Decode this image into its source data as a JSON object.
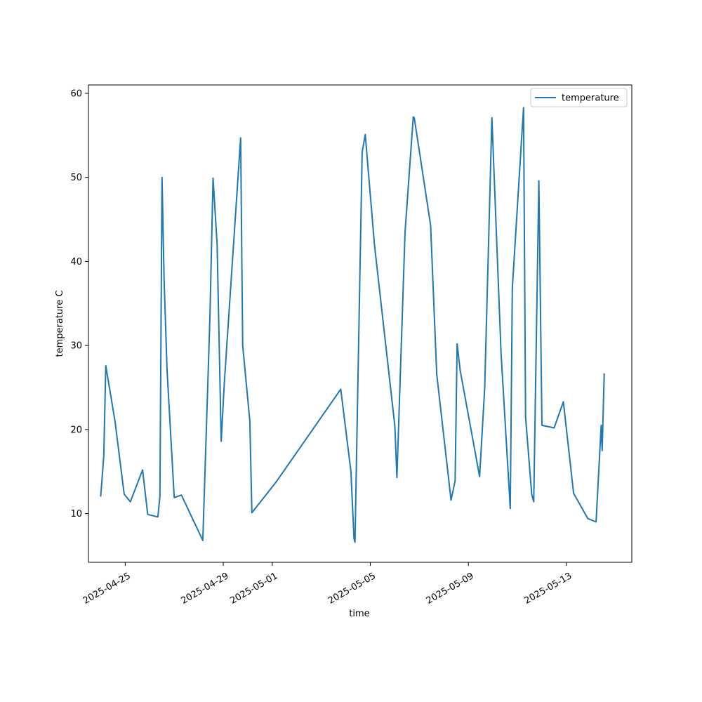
{
  "chart_data": {
    "type": "line",
    "title": "",
    "xlabel": "time",
    "ylabel": "temperature C",
    "x_type": "date",
    "xlim": [
      "2025-04-23T12:00",
      "2025-05-15T16:00"
    ],
    "ylim": [
      4.2,
      61.0
    ],
    "x_ticks": [
      "2025-04-25",
      "2025-04-29",
      "2025-05-01",
      "2025-05-05",
      "2025-05-09",
      "2025-05-13"
    ],
    "y_ticks": [
      10,
      20,
      30,
      40,
      50,
      60
    ],
    "grid": false,
    "legend": {
      "placement": "top-right",
      "entries": [
        "temperature"
      ]
    },
    "series": [
      {
        "name": "temperature",
        "color": "#1f77b4",
        "x": [
          "2025-04-24T00:00",
          "2025-04-24T03:00",
          "2025-04-24T05:00",
          "2025-04-24T14:00",
          "2025-04-24T23:00",
          "2025-04-25T05:00",
          "2025-04-25T17:00",
          "2025-04-25T22:00",
          "2025-04-26T08:00",
          "2025-04-26T10:00",
          "2025-04-26T12:00",
          "2025-04-26T14:00",
          "2025-04-26T17:00",
          "2025-04-27T00:00",
          "2025-04-27T07:00",
          "2025-04-28T04:00",
          "2025-04-28T11:00",
          "2025-04-28T14:00",
          "2025-04-28T18:00",
          "2025-04-28T22:00",
          "2025-04-29T01:00",
          "2025-04-29T17:00",
          "2025-04-29T19:00",
          "2025-04-30T02:00",
          "2025-04-30T04:00",
          "2025-05-01T04:00",
          "2025-05-03T19:00",
          "2025-05-04T05:00",
          "2025-05-04T08:00",
          "2025-05-04T09:00",
          "2025-05-04T11:00",
          "2025-05-04T16:00",
          "2025-05-04T19:00",
          "2025-05-05T04:00",
          "2025-05-06T00:00",
          "2025-05-06T02:00",
          "2025-05-06T10:00",
          "2025-05-06T18:00",
          "2025-05-06T19:00",
          "2025-05-07T11:00",
          "2025-05-07T17:00",
          "2025-05-08T07:00",
          "2025-05-08T11:00",
          "2025-05-08T13:00",
          "2025-05-08T16:00",
          "2025-05-09T11:00",
          "2025-05-09T16:00",
          "2025-05-09T23:00",
          "2025-05-10T08:00",
          "2025-05-10T17:00",
          "2025-05-10T19:00",
          "2025-05-11T06:00",
          "2025-05-11T08:00",
          "2025-05-11T14:00",
          "2025-05-11T16:00",
          "2025-05-11T21:00",
          "2025-05-12T00:00",
          "2025-05-12T12:00",
          "2025-05-12T21:00",
          "2025-05-13T07:00",
          "2025-05-13T21:00",
          "2025-05-14T05:00",
          "2025-05-14T10:00",
          "2025-05-14T11:00",
          "2025-05-14T13:00"
        ],
        "values": [
          12.1,
          16.8,
          27.6,
          21.0,
          12.3,
          11.4,
          15.2,
          9.9,
          9.6,
          12.0,
          50.0,
          38.0,
          27.0,
          11.9,
          12.2,
          6.8,
          33.5,
          49.9,
          42.0,
          18.6,
          25.5,
          54.7,
          30.0,
          21.0,
          10.1,
          13.8,
          24.8,
          15.0,
          7.0,
          6.6,
          20.0,
          53.0,
          55.1,
          42.0,
          20.4,
          14.3,
          43.5,
          57.2,
          57.1,
          44.3,
          26.6,
          11.6,
          13.9,
          30.2,
          27.0,
          14.4,
          25.0,
          57.1,
          29.0,
          10.6,
          36.8,
          58.3,
          21.5,
          12.3,
          11.4,
          49.6,
          20.5,
          20.2,
          23.3,
          12.4,
          9.4,
          9.0,
          20.5,
          17.5,
          26.6
        ]
      }
    ]
  }
}
